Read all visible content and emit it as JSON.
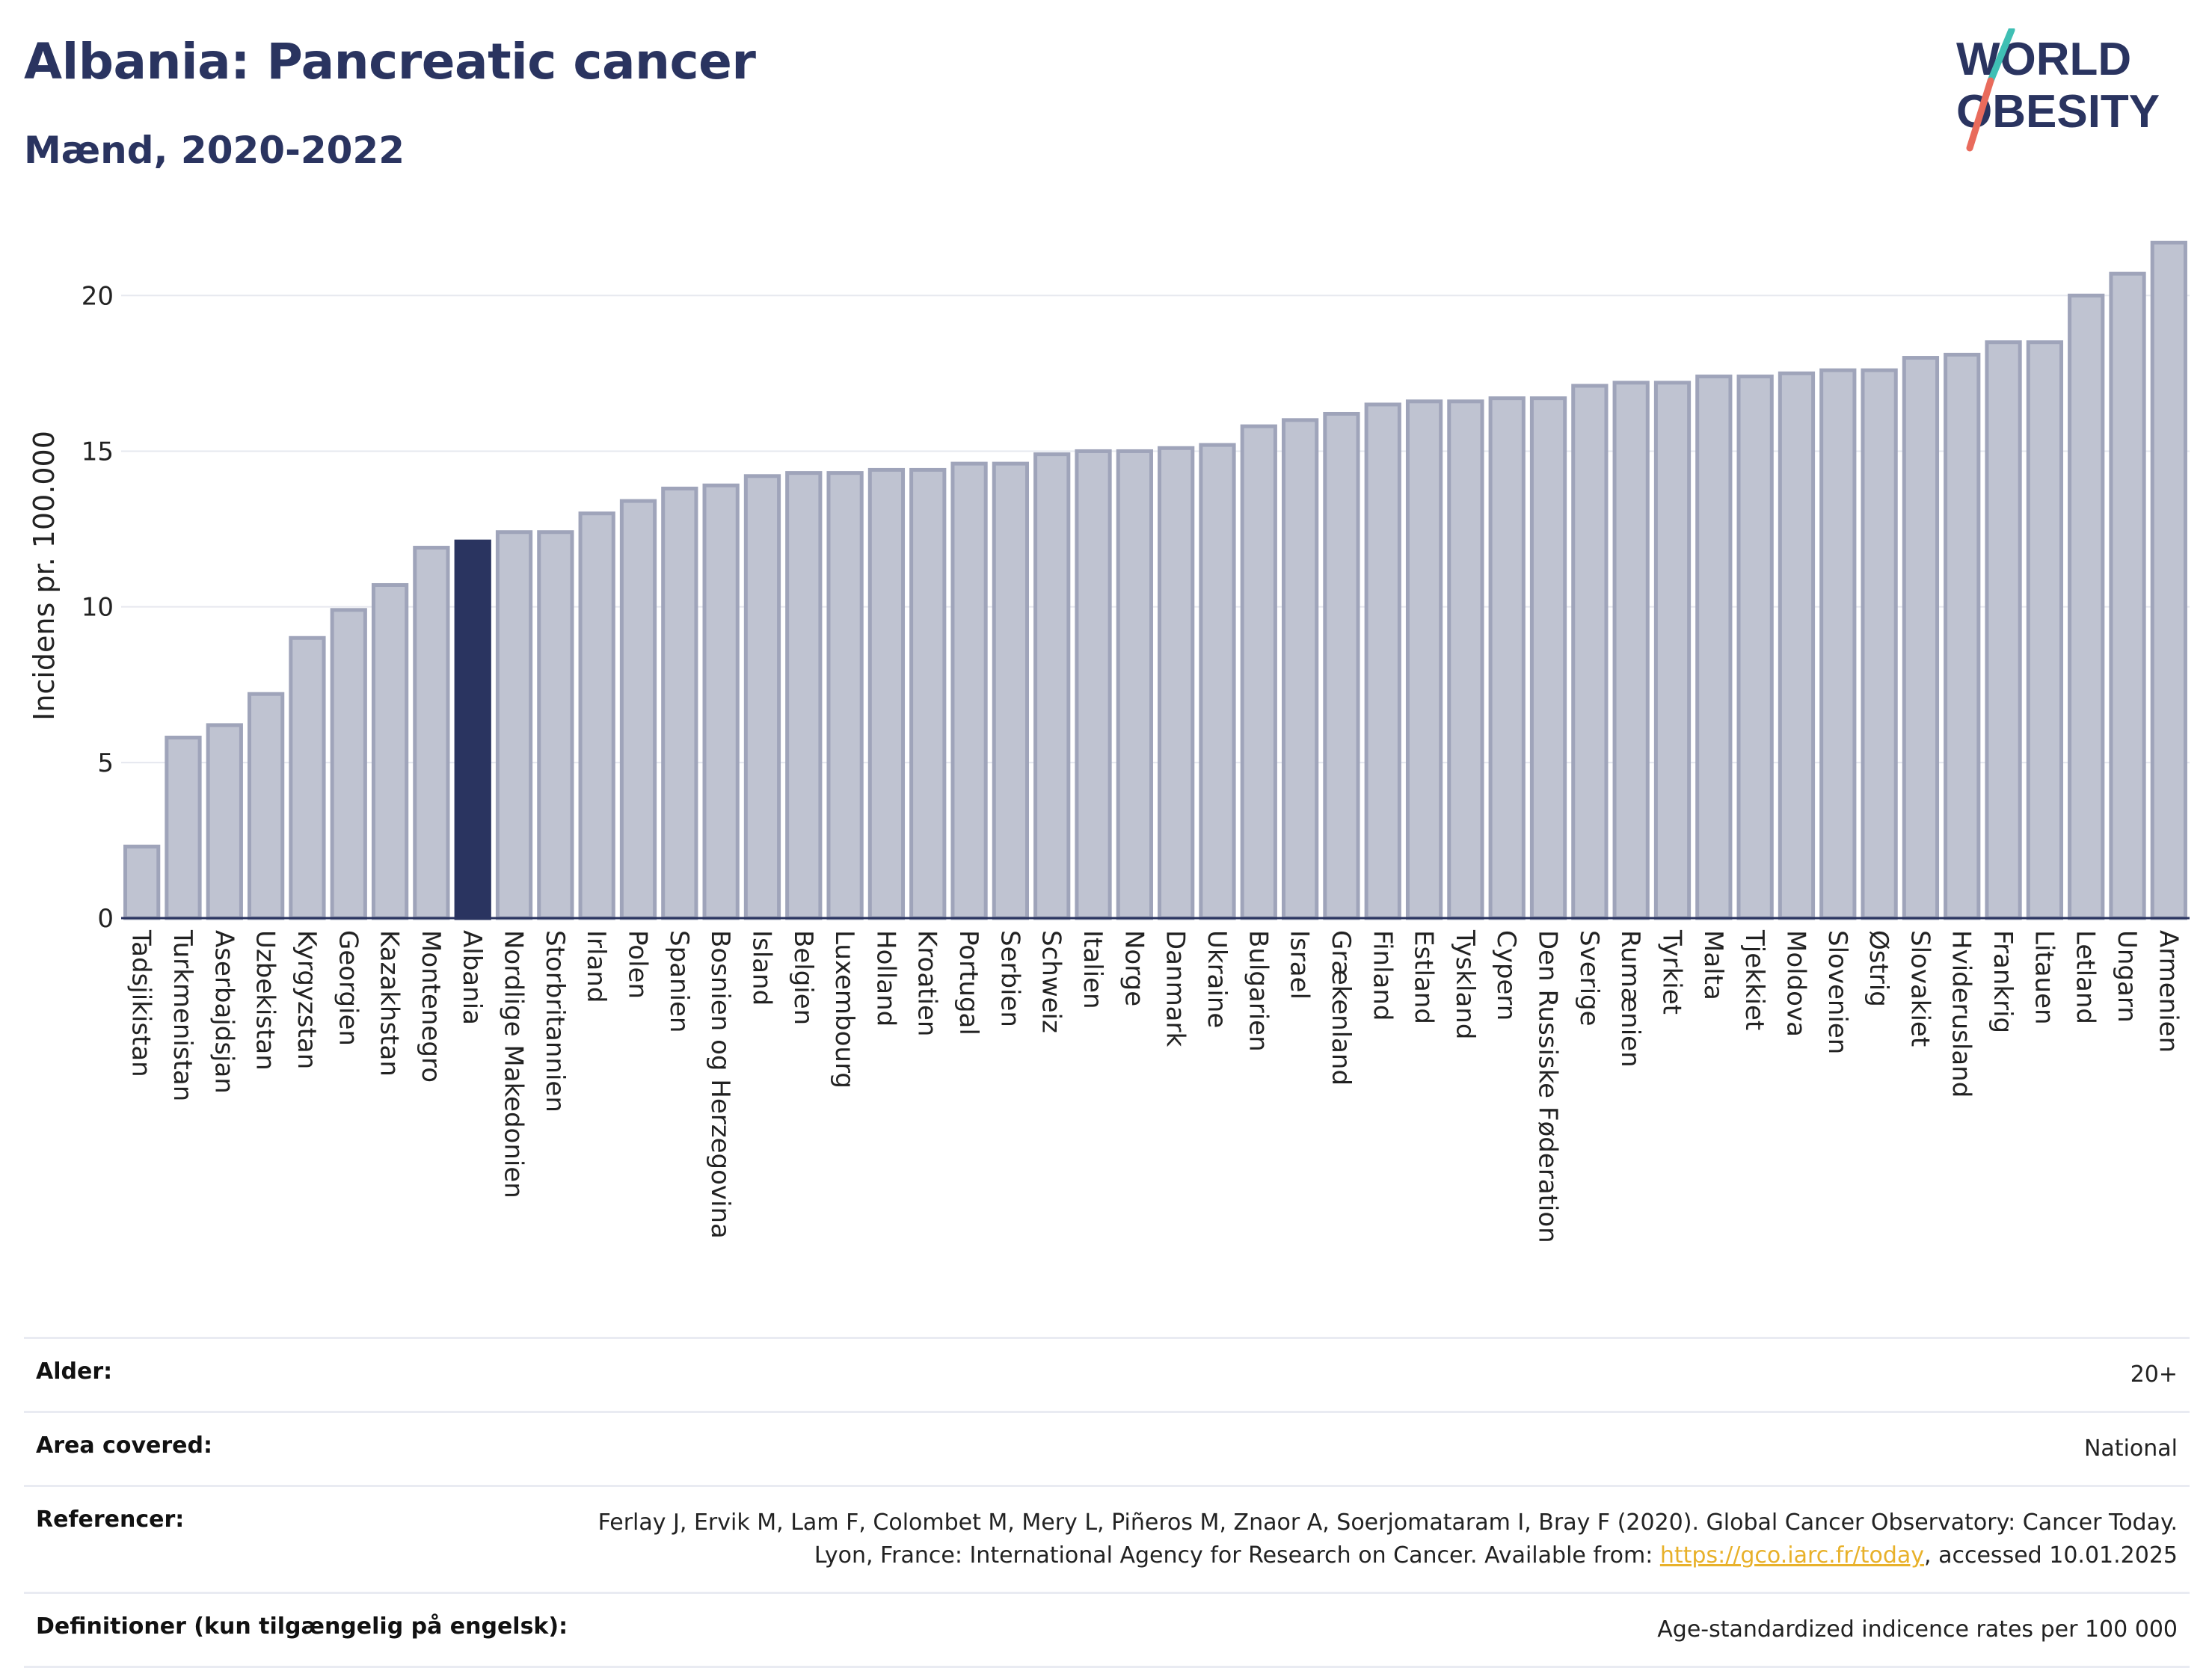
{
  "header": {
    "title": "Albania: Pancreatic cancer",
    "subtitle": "Mænd, 2020-2022",
    "logo_line1": "WORLD",
    "logo_line2": "OBESITY"
  },
  "colors": {
    "highlight": "#2a3460",
    "bar_fill": "#bfc3d1",
    "bar_stroke": "#9fa4ba",
    "logo_teal": "#3fbfb4",
    "logo_coral": "#e96b5c",
    "link": "#e8b12a"
  },
  "chart_data": {
    "type": "bar",
    "ylabel": "Incidens pr. 100.000",
    "ylim": [
      0,
      22
    ],
    "yticks": [
      0,
      5,
      10,
      15,
      20
    ],
    "highlight": "Albania",
    "grid": true,
    "categories": [
      "Tadsjikistan",
      "Turkmenistan",
      "Aserbajdsjan",
      "Uzbekistan",
      "Kyrgyzstan",
      "Georgien",
      "Kazakhstan",
      "Montenegro",
      "Albania",
      "Nordlige Makedonien",
      "Storbritannien",
      "Irland",
      "Polen",
      "Spanien",
      "Bosnien og Herzegovina",
      "Island",
      "Belgien",
      "Luxembourg",
      "Holland",
      "Kroatien",
      "Portugal",
      "Serbien",
      "Schweiz",
      "Italien",
      "Norge",
      "Danmark",
      "Ukraine",
      "Bulgarien",
      "Israel",
      "Grækenland",
      "Finland",
      "Estland",
      "Tyskland",
      "Cypern",
      "Den Russiske Føderation",
      "Sverige",
      "Rumænien",
      "Tyrkiet",
      "Malta",
      "Tjekkiet",
      "Moldova",
      "Slovenien",
      "Østrig",
      "Slovakiet",
      "Hviderusland",
      "Frankrig",
      "Litauen",
      "Letland",
      "Ungarn",
      "Armenien"
    ],
    "values": [
      2.3,
      5.8,
      6.2,
      7.2,
      9.0,
      9.9,
      10.7,
      11.9,
      12.1,
      12.4,
      12.4,
      13.0,
      13.4,
      13.8,
      13.9,
      14.2,
      14.3,
      14.3,
      14.4,
      14.4,
      14.6,
      14.6,
      14.9,
      15.0,
      15.0,
      15.1,
      15.2,
      15.8,
      16.0,
      16.2,
      16.5,
      16.6,
      16.6,
      16.7,
      16.7,
      17.1,
      17.2,
      17.2,
      17.4,
      17.4,
      17.5,
      17.6,
      17.6,
      18.0,
      18.1,
      18.5,
      18.5,
      20.0,
      20.7,
      21.7
    ]
  },
  "info": {
    "age_label": "Alder:",
    "age_value": "20+",
    "area_label": "Area covered:",
    "area_value": "National",
    "ref_label": "Referencer:",
    "ref_text_1": "Ferlay J, Ervik M, Lam F, Colombet M, Mery L, Piñeros M, Znaor A, Soerjomataram I, Bray F (2020). Global Cancer Observatory: Cancer Today. Lyon, France: International Agency for Research on Cancer. Available from: ",
    "ref_link": "https://gco.iarc.fr/today",
    "ref_text_2": ", accessed 10.01.2025",
    "def_label": "Definitioner (kun tilgængelig på engelsk):",
    "def_value": "Age-standardized indicence rates per 100 000"
  }
}
